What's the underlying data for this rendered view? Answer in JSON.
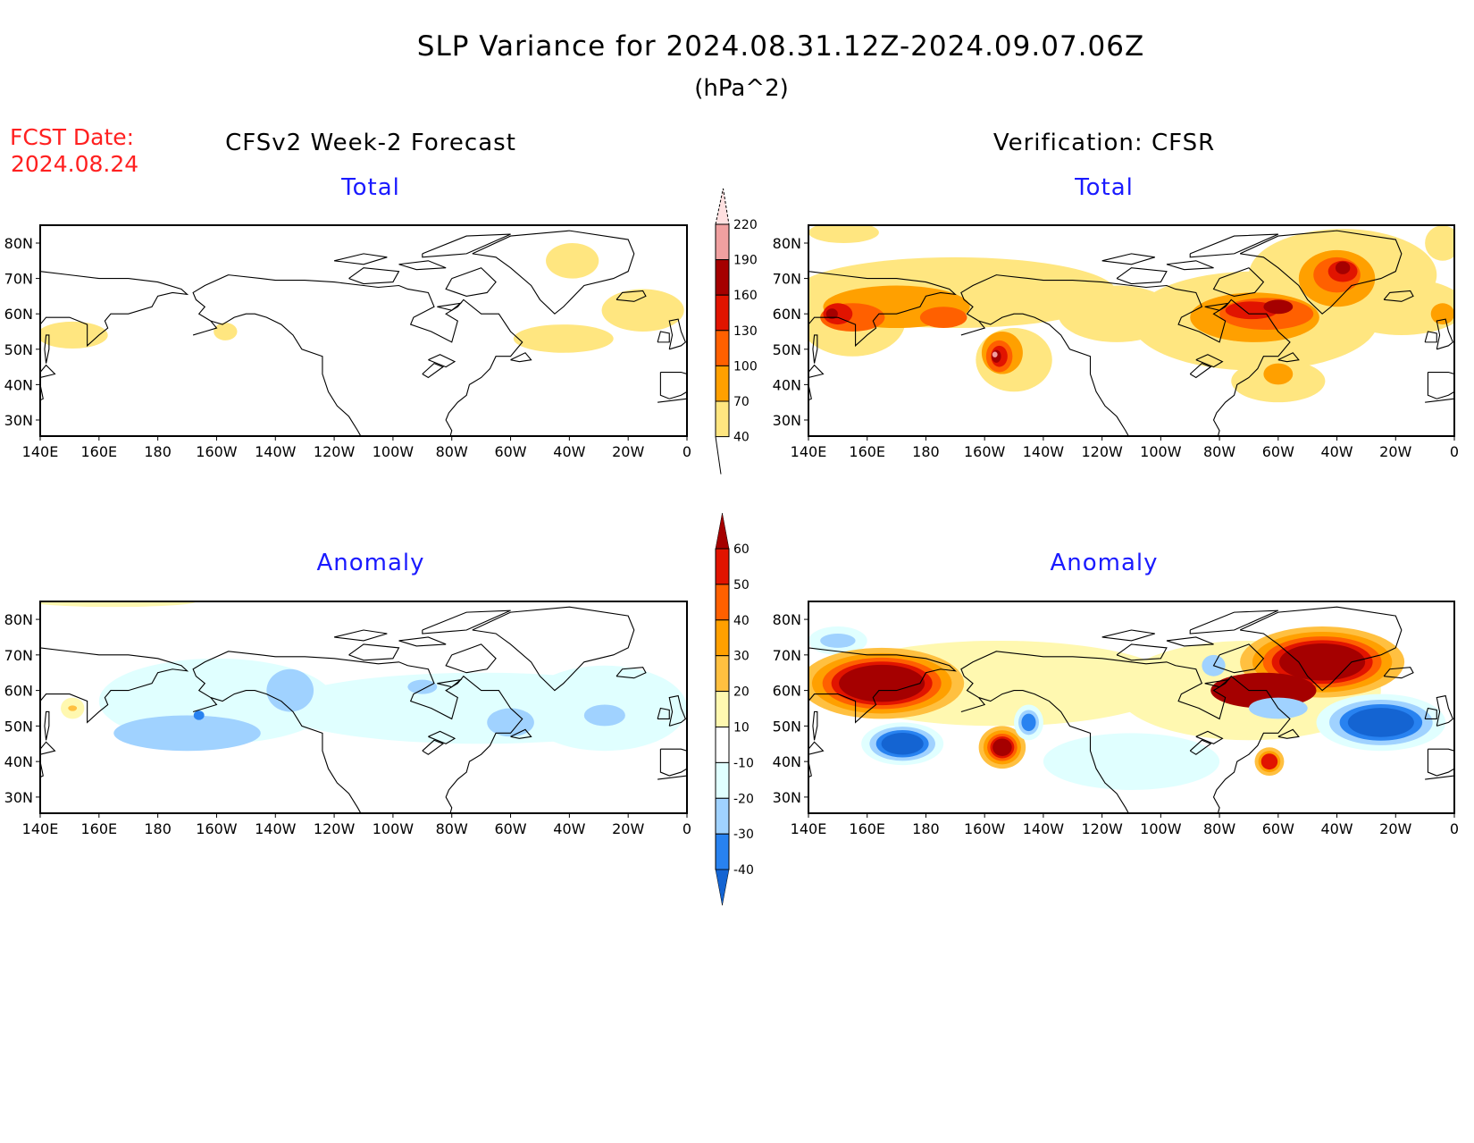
{
  "figure": {
    "title": "SLP Variance for 2024.08.31.12Z-2024.09.07.06Z",
    "units": "(hPa^2)",
    "fcst_label": "FCST Date:",
    "fcst_date": "2024.08.24",
    "left_heading": "CFSv2 Week-2 Forecast",
    "right_heading": "Verification: CFSR"
  },
  "panels": [
    {
      "id": "forecast-total",
      "label": "Total"
    },
    {
      "id": "verification-total",
      "label": "Total"
    },
    {
      "id": "forecast-anomaly",
      "label": "Anomaly"
    },
    {
      "id": "verification-anomaly",
      "label": "Anomaly"
    }
  ],
  "axes": {
    "lat_labels": [
      "80N",
      "70N",
      "60N",
      "50N",
      "40N",
      "30N"
    ],
    "lat_values": [
      80,
      70,
      60,
      50,
      40,
      30
    ],
    "lon_labels": [
      "140E",
      "160E",
      "180",
      "160W",
      "140W",
      "120W",
      "100W",
      "80W",
      "60W",
      "40W",
      "20W",
      "0"
    ],
    "lon_values": [
      140,
      160,
      180,
      200,
      220,
      240,
      260,
      280,
      300,
      320,
      340,
      360
    ]
  },
  "total_colorbar": {
    "labels": [
      "220",
      "190",
      "160",
      "130",
      "100",
      "70",
      "40"
    ],
    "colors": [
      "#ffe0e0",
      "#f0a0a0",
      "#a50000",
      "#e11400",
      "#ff6000",
      "#ffa000",
      "#ffe680"
    ]
  },
  "anomaly_colorbar": {
    "labels": [
      "60",
      "50",
      "40",
      "30",
      "20",
      "10",
      "-10",
      "-20",
      "-30",
      "-40"
    ],
    "colors": [
      "#a50000",
      "#e11400",
      "#ff6000",
      "#ffa000",
      "#ffc040",
      "#fff8b0",
      "#ffffff",
      "#e0ffff",
      "#a0d2ff",
      "#2882f0",
      "#1464d2"
    ]
  }
}
